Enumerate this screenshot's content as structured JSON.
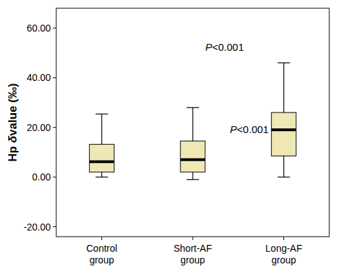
{
  "chart_data": {
    "type": "box",
    "y_label": "Hp δvalue (‰)",
    "categories": [
      "Control group",
      "Short-AF group",
      "Long-AF group"
    ],
    "whisker_low": [
      0,
      -1,
      0
    ],
    "q1": [
      2,
      2,
      8.5
    ],
    "median": [
      6.2,
      7,
      19
    ],
    "q3": [
      13.2,
      14.5,
      26
    ],
    "whisker_high": [
      25.4,
      28,
      46
    ],
    "color": "#efe8b4",
    "annotations": [
      "P<0.001",
      "P<0.001"
    ],
    "ylim": [
      -24,
      68
    ],
    "yticks": [
      {
        "value": -20,
        "label": "-20.00"
      },
      {
        "value": 0,
        "label": "0.00"
      },
      {
        "value": 20,
        "label": "20.00"
      },
      {
        "value": 40,
        "label": "40.00"
      },
      {
        "value": 60,
        "label": "60.00"
      }
    ],
    "grid": false
  }
}
